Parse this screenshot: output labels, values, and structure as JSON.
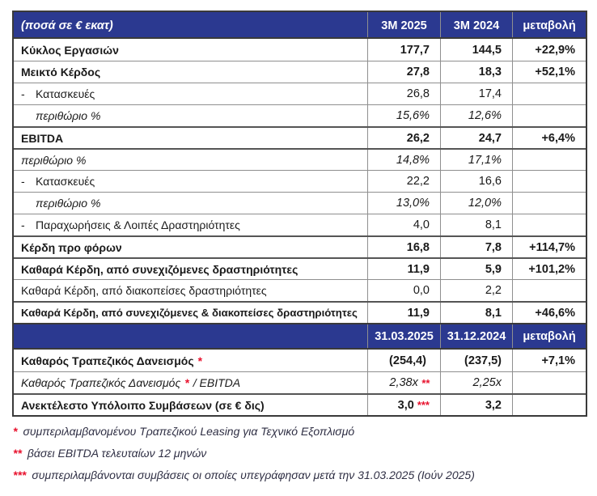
{
  "colors": {
    "header_bg": "#2B3990",
    "header_text": "#ffffff",
    "accent_red": "#E8112D",
    "body_text": "#1a1a1a",
    "grid_line": "#8f8f8f",
    "outer_border": "#3a3a3a"
  },
  "table": {
    "dash": "-",
    "header1": {
      "label": "(ποσά σε € εκατ)",
      "col1": "3M 2025",
      "col2": "3M 2024",
      "col3": "μεταβολή"
    },
    "rows1": [
      {
        "label": "Κύκλος Εργασιών",
        "v1": "177,7",
        "v2": "144,5",
        "change": "+22,9%"
      },
      {
        "label": "Μεικτό Κέρδος",
        "v1": "27,8",
        "v2": "18,3",
        "change": "+52,1%"
      },
      {
        "label": "Κατασκευές",
        "v1": "26,8",
        "v2": "17,4",
        "change": ""
      },
      {
        "label": "περιθώριο %",
        "v1": "15,6%",
        "v2": "12,6%",
        "change": ""
      },
      {
        "label": "EBITDA",
        "v1": "26,2",
        "v2": "24,7",
        "change": "+6,4%"
      },
      {
        "label": "περιθώριο %",
        "v1": "14,8%",
        "v2": "17,1%",
        "change": ""
      },
      {
        "label": "Κατασκευές",
        "v1": "22,2",
        "v2": "16,6",
        "change": ""
      },
      {
        "label": "περιθώριο %",
        "v1": "13,0%",
        "v2": "12,0%",
        "change": ""
      },
      {
        "label": "Παραχωρήσεις & Λοιπές Δραστηριότητες",
        "v1": "4,0",
        "v2": "8,1",
        "change": ""
      },
      {
        "label": "Κέρδη προ φόρων",
        "v1": "16,8",
        "v2": "7,8",
        "change": "+114,7%"
      },
      {
        "label": "Καθαρά Κέρδη, από συνεχιζόμενες δραστηριότητες",
        "v1": "11,9",
        "v2": "5,9",
        "change": "+101,2%"
      },
      {
        "label": "Καθαρά Κέρδη, από διακοπείσες δραστηριότητες",
        "v1": "0,0",
        "v2": "2,2",
        "change": ""
      },
      {
        "label": "Καθαρά Κέρδη, από συνεχιζόμενες & διακοπείσες δραστηριότητες",
        "v1": "11,9",
        "v2": "8,1",
        "change": "+46,6%"
      }
    ],
    "header2": {
      "label": "",
      "col1": "31.03.2025",
      "col2": "31.12.2024",
      "col3": "μεταβολή"
    },
    "rows2": [
      {
        "label": "Καθαρός Τραπεζικός Δανεισμός",
        "marker": "*",
        "label_after": "",
        "v1": "(254,4)",
        "v1_marker": "",
        "v2": "(237,5)",
        "change": "+7,1%"
      },
      {
        "label": "Καθαρός Τραπεζικός Δανεισμός",
        "marker": "*",
        "label_after": "/ EBITDA",
        "v1": "2,38x",
        "v1_marker": "**",
        "v2": "2,25x",
        "change": ""
      },
      {
        "label": "Ανεκτέλεστο Υπόλοιπο Συμβάσεων (σε € δις)",
        "marker": "",
        "label_after": "",
        "v1": "3,0",
        "v1_marker": "***",
        "v2": "3,2",
        "change": ""
      }
    ]
  },
  "footnotes": [
    {
      "marker": "*",
      "text": "συμπεριλαμβανομένου Τραπεζικού Leasing για Τεχνικό Εξοπλισμό"
    },
    {
      "marker": "**",
      "text": "βάσει EBITDA τελευταίων 12 μηνών"
    },
    {
      "marker": "***",
      "text": "συμπεριλαμβάνονται συμβάσεις οι οποίες υπεγράφησαν μετά την 31.03.2025 (Ιούν 2025)"
    }
  ]
}
